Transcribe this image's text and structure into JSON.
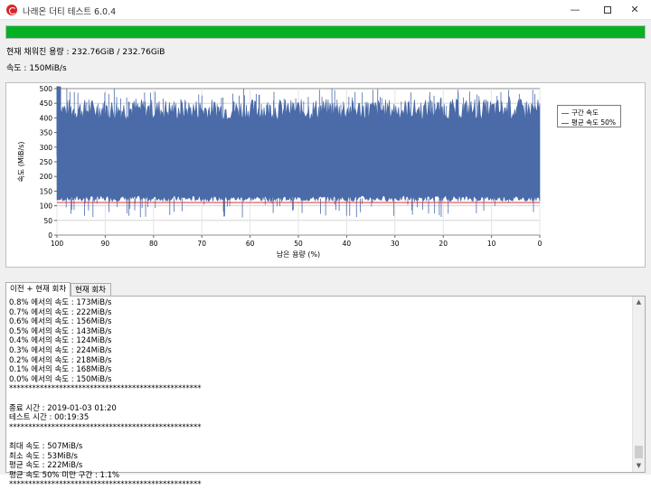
{
  "window": {
    "title": "나래온 더티 테스트 6.0.4",
    "icon": "app-logo-icon",
    "minimize_glyph": "—",
    "close_glyph": "✕"
  },
  "progress": {
    "fraction": 1.0,
    "color": "#06b025"
  },
  "info": {
    "capacity": "현재 채워진 용량 : 232.76GiB / 232.76GiB",
    "speed": "속도 : 150MiB/s"
  },
  "chart_data": {
    "type": "area",
    "ylabel": "속도 (MiB/s)",
    "xlabel": "남은 용량 (%)",
    "ylim": [
      0,
      500
    ],
    "xlim": [
      100,
      0
    ],
    "x_ticks": [
      "100",
      "90",
      "80",
      "70",
      "60",
      "50",
      "40",
      "30",
      "20",
      "10",
      "0"
    ],
    "y_ticks": [
      "0",
      "50",
      "100",
      "150",
      "200",
      "250",
      "300",
      "350",
      "400",
      "450",
      "500"
    ],
    "grid": true,
    "legend_position": "right",
    "series": [
      {
        "name": "구간 속도",
        "color": "#4a6aa8",
        "typical_range": [
          120,
          450
        ],
        "peak": 507,
        "min": 53
      },
      {
        "name": "평균 속도 50%",
        "color": "#e03030",
        "value": 111
      }
    ]
  },
  "tabs": [
    {
      "label": "이전 + 현재 회차",
      "active": true
    },
    {
      "label": "현재 회차",
      "active": false
    }
  ],
  "log": [
    "0.8% 에서의 속도 : 173MiB/s",
    "0.7% 에서의 속도 : 222MiB/s",
    "0.6% 에서의 속도 : 156MiB/s",
    "0.5% 에서의 속도 : 143MiB/s",
    "0.4% 에서의 속도 : 124MiB/s",
    "0.3% 에서의 속도 : 224MiB/s",
    "0.2% 에서의 속도 : 218MiB/s",
    "0.1% 에서의 속도 : 168MiB/s",
    "0.0% 에서의 속도 : 150MiB/s",
    "**************************************************",
    "",
    "종료 시간 : 2019-01-03 01:20",
    "테스트 시간 : 00:19:35",
    "**************************************************",
    "",
    "최대 속도 : 507MiB/s",
    "최소 속도 : 53MiB/s",
    "평균 속도 : 222MiB/s",
    "평균 속도 50% 미만 구간 : 1.1%",
    "**************************************************"
  ]
}
